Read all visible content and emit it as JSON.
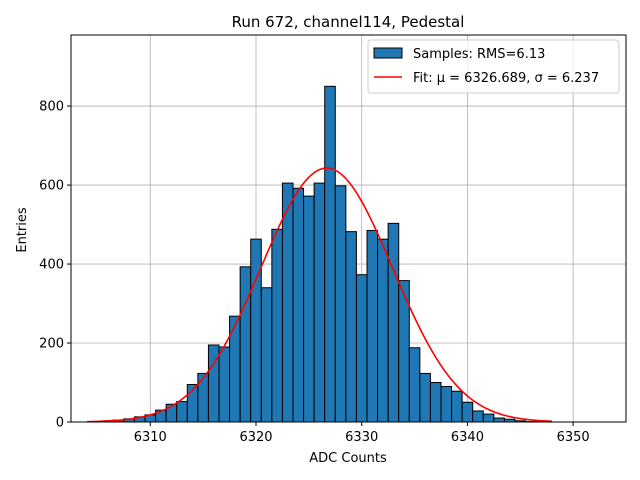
{
  "chart_data": {
    "type": "bar",
    "title": "Run 672, channel114, Pedestal",
    "xlabel": "ADC Counts",
    "ylabel": "Entries",
    "xlim": [
      3,
      5,
      6355.0
    ],
    "ylim": [
      0,
      980
    ],
    "grid": true,
    "legend_position": "top-right",
    "x_ticks": [
      6310,
      6320,
      6330,
      6340,
      6350
    ],
    "y_ticks": [
      0,
      200,
      400,
      600,
      800
    ],
    "bin_width": 1,
    "bin_centers": [
      6305,
      6306,
      6307,
      6308,
      6309,
      6310,
      6311,
      6312,
      6313,
      6314,
      6315,
      6316,
      6317,
      6318,
      6319,
      6320,
      6321,
      6322,
      6323,
      6324,
      6325,
      6326,
      6327,
      6328,
      6329,
      6330,
      6331,
      6332,
      6333,
      6334,
      6335,
      6336,
      6337,
      6338,
      6339,
      6340,
      6341,
      6342,
      6343,
      6344,
      6345,
      6346,
      6347
    ],
    "counts": [
      1,
      3,
      5,
      8,
      13,
      18,
      30,
      45,
      52,
      95,
      123,
      195,
      190,
      268,
      393,
      463,
      340,
      488,
      605,
      592,
      572,
      605,
      850,
      598,
      482,
      373,
      485,
      463,
      503,
      358,
      188,
      123,
      100,
      90,
      78,
      50,
      28,
      20,
      10,
      7,
      3,
      1,
      1
    ],
    "series": [
      {
        "name": "Samples: RMS=6.13",
        "kind": "histogram",
        "color": "#1f77b4",
        "edgecolor": "#000000"
      },
      {
        "name": "Fit: μ = 6326.689, σ = 6.237",
        "kind": "gaussian",
        "color": "#ff0000",
        "mu": 6326.689,
        "sigma": 6.237,
        "amplitude": 643,
        "x_range": [
          6304,
          6348
        ]
      }
    ]
  }
}
